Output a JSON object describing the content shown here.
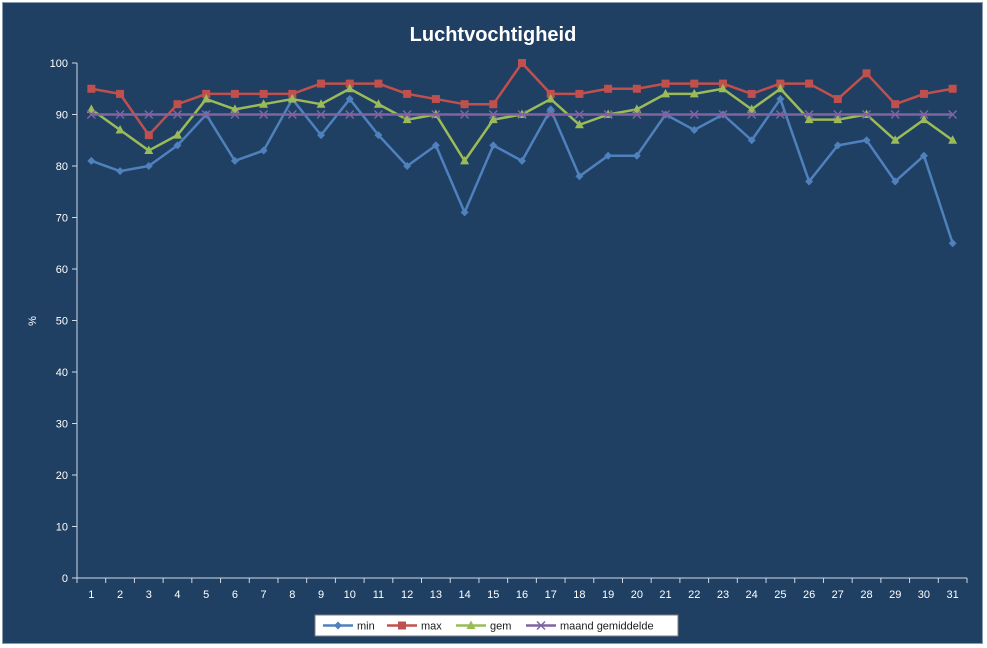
{
  "chart_data": {
    "type": "line",
    "title": "Luchtvochtigheid",
    "xlabel": "",
    "ylabel": "%",
    "ylim": [
      0,
      100
    ],
    "yticks": [
      0,
      10,
      20,
      30,
      40,
      50,
      60,
      70,
      80,
      90,
      100
    ],
    "grid": false,
    "legend_position": "bottom",
    "categories": [
      "1",
      "2",
      "3",
      "4",
      "5",
      "6",
      "7",
      "8",
      "9",
      "10",
      "11",
      "12",
      "13",
      "14",
      "15",
      "16",
      "17",
      "18",
      "19",
      "20",
      "21",
      "22",
      "23",
      "24",
      "25",
      "26",
      "27",
      "28",
      "29",
      "30",
      "31"
    ],
    "series": [
      {
        "name": "min",
        "color": "#4f81bd",
        "marker": "diamond",
        "values": [
          81,
          79,
          80,
          84,
          90,
          81,
          83,
          93,
          86,
          93,
          86,
          80,
          84,
          71,
          84,
          81,
          91,
          78,
          82,
          82,
          90,
          87,
          90,
          85,
          93,
          77,
          84,
          85,
          77,
          82,
          65
        ]
      },
      {
        "name": "max",
        "color": "#c0504d",
        "marker": "square",
        "values": [
          95,
          94,
          86,
          92,
          94,
          94,
          94,
          94,
          96,
          96,
          96,
          94,
          93,
          92,
          92,
          100,
          94,
          94,
          95,
          95,
          96,
          96,
          96,
          94,
          96,
          96,
          93,
          98,
          92,
          94,
          95
        ]
      },
      {
        "name": "gem",
        "color": "#9bbb59",
        "marker": "triangle",
        "values": [
          91,
          87,
          83,
          86,
          93,
          91,
          92,
          93,
          92,
          95,
          92,
          89,
          90,
          81,
          89,
          90,
          93,
          88,
          90,
          91,
          94,
          94,
          95,
          91,
          95,
          89,
          89,
          90,
          85,
          89,
          85
        ]
      },
      {
        "name": "maand gemiddelde",
        "color": "#8064a2",
        "marker": "x",
        "values": [
          90,
          90,
          90,
          90,
          90,
          90,
          90,
          90,
          90,
          90,
          90,
          90,
          90,
          90,
          90,
          90,
          90,
          90,
          90,
          90,
          90,
          90,
          90,
          90,
          90,
          90,
          90,
          90,
          90,
          90,
          90
        ]
      }
    ]
  }
}
